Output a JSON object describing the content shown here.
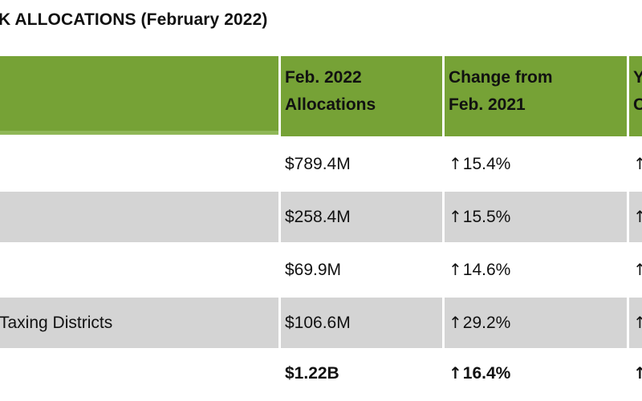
{
  "title": "K ALLOCATIONS (February 2022)",
  "table": {
    "headers": [
      {
        "line1": "",
        "line2": ""
      },
      {
        "line1": "Feb. 2022",
        "line2": "Allocations"
      },
      {
        "line1": "Change from",
        "line2": "Feb. 2021"
      },
      {
        "line1": "Y",
        "line2": "C"
      }
    ],
    "rows": [
      {
        "label": "",
        "allocation": "$789.4M",
        "arrow": "↑",
        "change": "15.4%",
        "partial": "↑"
      },
      {
        "label": "",
        "allocation": "$258.4M",
        "arrow": "↑",
        "change": "15.5%",
        "partial": "↑"
      },
      {
        "label": "",
        "allocation": "$69.9M",
        "arrow": "↑",
        "change": "14.6%",
        "partial": "↑"
      },
      {
        "label": "Taxing Districts",
        "allocation": "$106.6M",
        "arrow": "↑",
        "change": "29.2%",
        "partial": "↑"
      },
      {
        "label": "",
        "allocation": "$1.22B",
        "arrow": "↑",
        "change": "16.4%",
        "partial": "↑"
      }
    ]
  },
  "colors": {
    "header_green": "#76a236",
    "row_shade": "#d4d4d4"
  }
}
